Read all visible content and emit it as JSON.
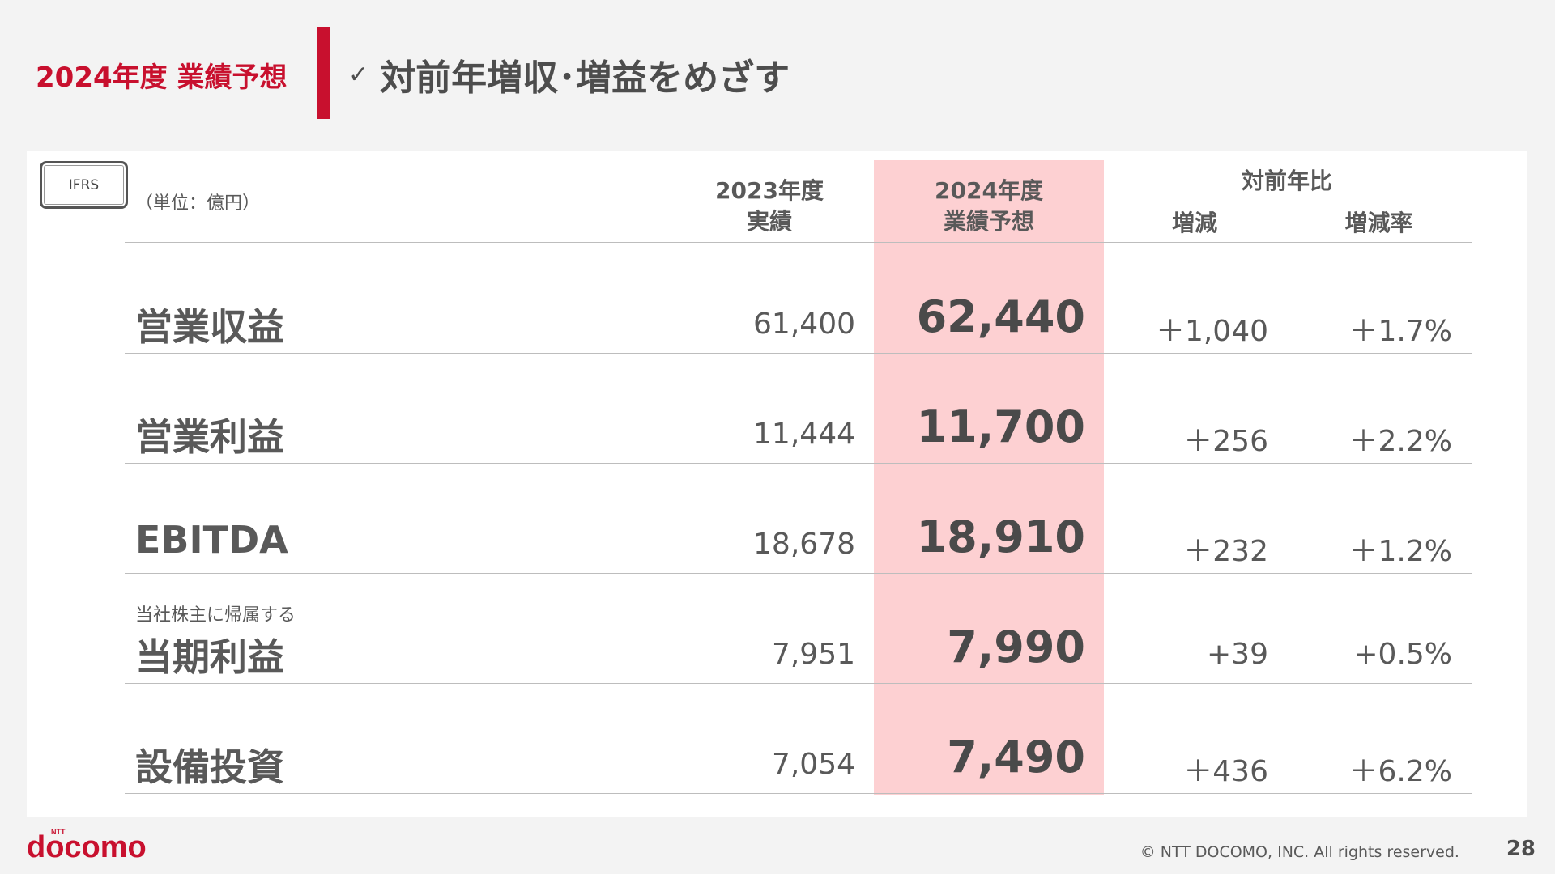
{
  "header": {
    "section_title": "2024年度 業績予想",
    "check_mark": "✓",
    "headline": "対前年増収･増益をめざす"
  },
  "table": {
    "badge": "IFRS",
    "unit": "（単位：億円）",
    "columns": {
      "fy2023_line1": "2023年度",
      "fy2023_line2": "実績",
      "fy2024_line1": "2024年度",
      "fy2024_line2": "業績予想",
      "yoy": "対前年比",
      "diff": "増減",
      "rate": "増減率"
    },
    "rows": [
      {
        "sublabel": "",
        "label": "営業収益",
        "fy2023": "61,400",
        "fy2024": "62,440",
        "diff": "＋1,040",
        "rate": "＋1.7%"
      },
      {
        "sublabel": "",
        "label": "営業利益",
        "fy2023": "11,444",
        "fy2024": "11,700",
        "diff": "＋256",
        "rate": "＋2.2%"
      },
      {
        "sublabel": "",
        "label": "EBITDA",
        "fy2023": "18,678",
        "fy2024": "18,910",
        "diff": "＋232",
        "rate": "＋1.2%"
      },
      {
        "sublabel": "当社株主に帰属する",
        "label": "当期利益",
        "fy2023": "7,951",
        "fy2024": "7,990",
        "diff": "+39",
        "rate": "+0.5%"
      },
      {
        "sublabel": "",
        "label": "設備投資",
        "fy2023": "7,054",
        "fy2024": "7,490",
        "diff": "＋436",
        "rate": "＋6.2%"
      }
    ]
  },
  "footer": {
    "logo_ntt": "NTT",
    "logo": "docomo",
    "copyright": "© NTT DOCOMO, INC.   All rights reserved.  ｜",
    "page_number": "28"
  },
  "colors": {
    "brand_red": "#c8102e",
    "highlight_pink": "#fdd0d2"
  }
}
